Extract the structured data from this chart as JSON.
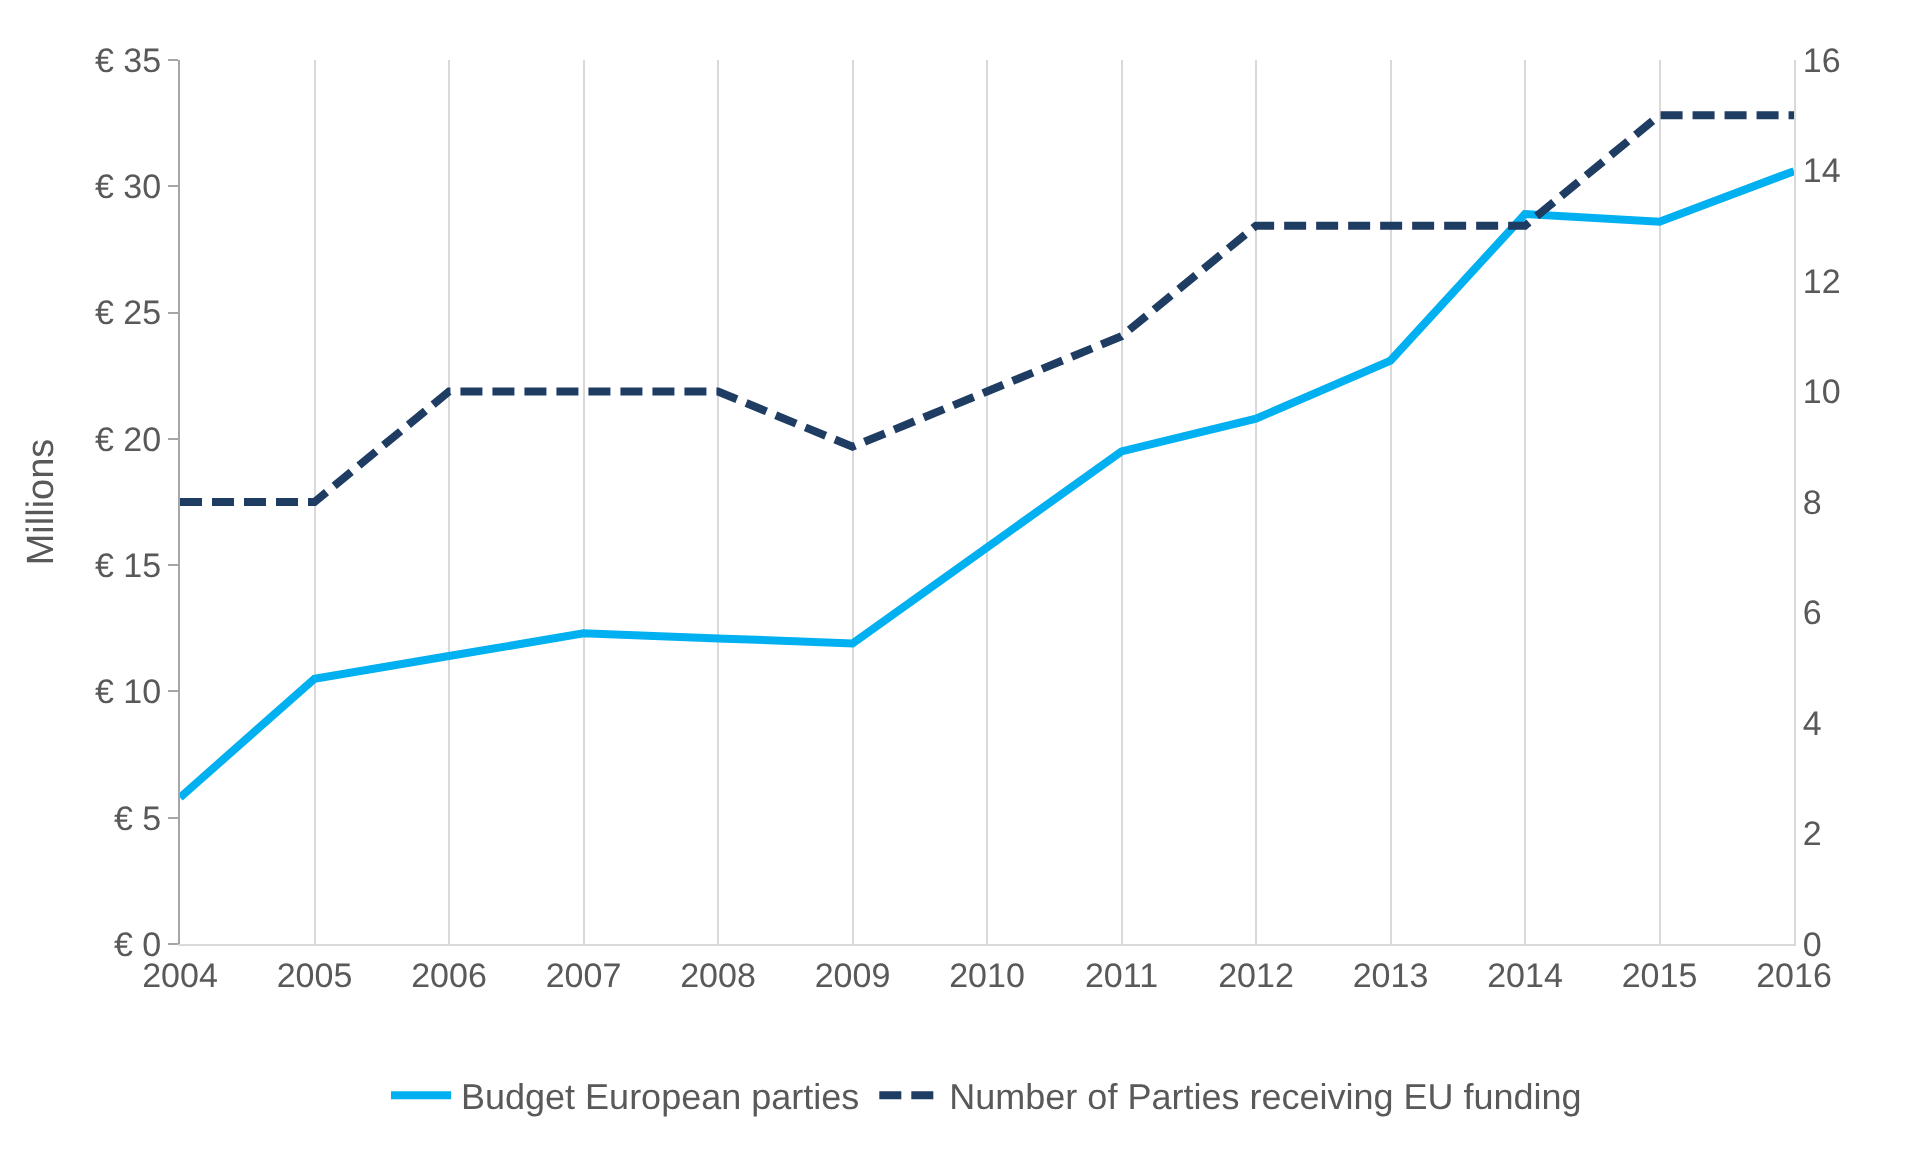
{
  "chart_data": {
    "type": "line",
    "ylabel": "Millions",
    "categories": [
      "2004",
      "2005",
      "2006",
      "2007",
      "2008",
      "2009",
      "2010",
      "2011",
      "2012",
      "2013",
      "2014",
      "2015",
      "2016"
    ],
    "series": [
      {
        "name": "Budget European parties",
        "color": "#00b0f0",
        "line_style": "solid",
        "values": [
          5.8,
          10.5,
          11.4,
          12.3,
          12.1,
          11.9,
          15.7,
          19.5,
          20.8,
          23.1,
          28.9,
          28.6,
          30.6
        ]
      },
      {
        "name": "Number of Parties receiving EU funding",
        "color": "#1f3d63",
        "line_style": "dashed",
        "axis": "y2",
        "values": [
          8,
          8,
          10,
          10,
          10,
          9,
          10,
          11,
          13,
          13,
          13,
          15,
          15
        ]
      }
    ],
    "ylim": [
      0,
      35
    ],
    "yticks": [
      {
        "value": 0,
        "label": "€ 0"
      },
      {
        "value": 5,
        "label": "€ 5"
      },
      {
        "value": 10,
        "label": "€ 10"
      },
      {
        "value": 15,
        "label": "€ 15"
      },
      {
        "value": 20,
        "label": "€ 20"
      },
      {
        "value": 25,
        "label": "€ 25"
      },
      {
        "value": 30,
        "label": "€ 30"
      },
      {
        "value": 35,
        "label": "€ 35"
      }
    ],
    "y2lim": [
      0,
      16
    ],
    "y2ticks": [
      0,
      2,
      4,
      6,
      8,
      10,
      12,
      14,
      16
    ],
    "grid": "x",
    "legend": "bottom",
    "marker": "none"
  }
}
